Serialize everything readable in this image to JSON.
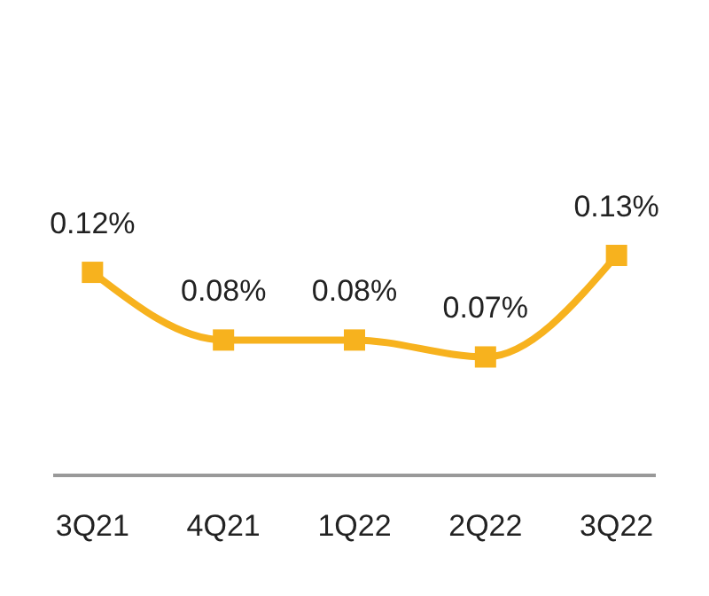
{
  "chart_data": {
    "type": "line",
    "categories": [
      "3Q21",
      "4Q21",
      "1Q22",
      "2Q22",
      "3Q22"
    ],
    "series": [
      {
        "color": "#f7b21e",
        "values": [
          0.12,
          0.08,
          0.08,
          0.07,
          0.13
        ],
        "value_labels": [
          "0.12%",
          "0.08%",
          "0.08%",
          "0.07%",
          "0.13%"
        ]
      }
    ],
    "tick_labels": "x",
    "marker": "square",
    "line_style": "solid"
  }
}
